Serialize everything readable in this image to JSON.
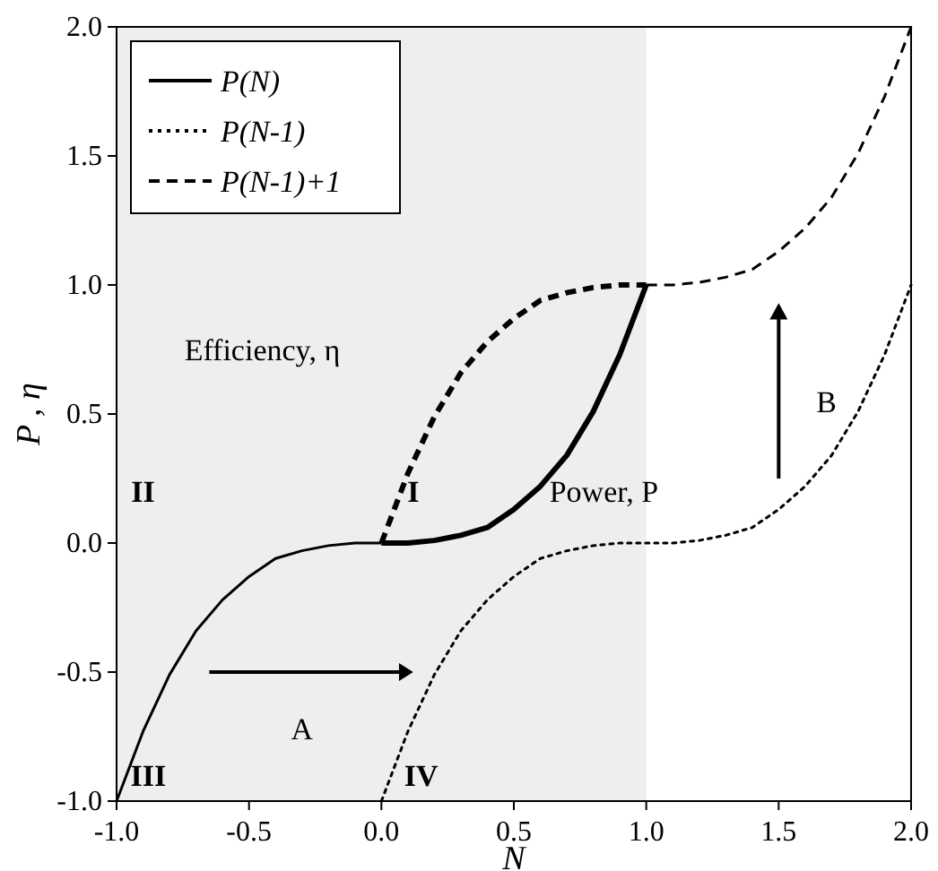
{
  "chart_data": {
    "type": "line",
    "xlabel": "N",
    "ylabel": "P , η",
    "xlim": [
      -1,
      2
    ],
    "ylim": [
      -1,
      2
    ],
    "xticks": [
      {
        "value": -1,
        "label": "-1.0"
      },
      {
        "value": -0.5,
        "label": "-0.5"
      },
      {
        "value": 0,
        "label": "0.0"
      },
      {
        "value": 0.5,
        "label": "0.5"
      },
      {
        "value": 1,
        "label": "1.0"
      },
      {
        "value": 1.5,
        "label": "1.5"
      },
      {
        "value": 2,
        "label": "2.0"
      }
    ],
    "yticks": [
      {
        "value": -1,
        "label": "-1.0"
      },
      {
        "value": -0.5,
        "label": "-0.5"
      },
      {
        "value": 0,
        "label": "0.0"
      },
      {
        "value": 0.5,
        "label": "0.5"
      },
      {
        "value": 1,
        "label": "1.0"
      },
      {
        "value": 1.5,
        "label": "1.5"
      },
      {
        "value": 2,
        "label": "2.0"
      }
    ],
    "legend": "top left",
    "grid": false,
    "marker": "none",
    "series": [
      {
        "name": "P(N)",
        "color": "#000000",
        "line_style": "solid",
        "x": [
          -1,
          -0.9,
          -0.8,
          -0.7,
          -0.6,
          -0.5,
          -0.4,
          -0.3,
          -0.2,
          -0.1,
          0
        ],
        "values": [
          -1,
          -0.73,
          -0.51,
          -0.34,
          -0.22,
          -0.13,
          -0.06,
          -0.03,
          -0.01,
          0,
          0
        ]
      },
      {
        "color": "#000000",
        "line_style": "solid",
        "x": [
          0,
          0.1,
          0.2,
          0.3,
          0.4,
          0.5,
          0.6,
          0.7,
          0.8,
          0.9,
          1
        ],
        "values": [
          0,
          0,
          0.01,
          0.03,
          0.06,
          0.13,
          0.22,
          0.34,
          0.51,
          0.73,
          1
        ]
      },
      {
        "name": "P(N-1)",
        "color": "#000000",
        "line_style": "dotted",
        "x": [
          0,
          0.1,
          0.2,
          0.3,
          0.4,
          0.5,
          0.6,
          0.7,
          0.8,
          0.9,
          1,
          1.1,
          1.2,
          1.3,
          1.4,
          1.5,
          1.6,
          1.7,
          1.8,
          1.9,
          2
        ],
        "values": [
          -1,
          -0.73,
          -0.51,
          -0.34,
          -0.22,
          -0.13,
          -0.06,
          -0.03,
          -0.01,
          0,
          0,
          0,
          0.01,
          0.03,
          0.06,
          0.13,
          0.22,
          0.34,
          0.51,
          0.73,
          1
        ]
      },
      {
        "name": "P(N-1)+1",
        "color": "#000000",
        "line_style": "dashed",
        "x": [
          1,
          1.1,
          1.2,
          1.3,
          1.4,
          1.5,
          1.6,
          1.7,
          1.8,
          1.9,
          2
        ],
        "values": [
          1,
          1,
          1.01,
          1.03,
          1.06,
          1.13,
          1.22,
          1.34,
          1.51,
          1.73,
          2
        ]
      },
      {
        "color": "#000000",
        "line_style": "dashed",
        "x": [
          0,
          0.1,
          0.2,
          0.3,
          0.4,
          0.5,
          0.6,
          0.7,
          0.8,
          0.9,
          1
        ],
        "values": [
          0,
          0.27,
          0.49,
          0.66,
          0.78,
          0.87,
          0.94,
          0.97,
          0.99,
          1,
          1
        ]
      }
    ],
    "bands": [
      {
        "axis": "x",
        "from": -1,
        "to": 1,
        "color": "#eeeeee"
      }
    ],
    "annotations": [
      "Efficiency, η",
      "Power, P",
      "I",
      "II",
      "III",
      "IV",
      "A",
      "B"
    ]
  }
}
